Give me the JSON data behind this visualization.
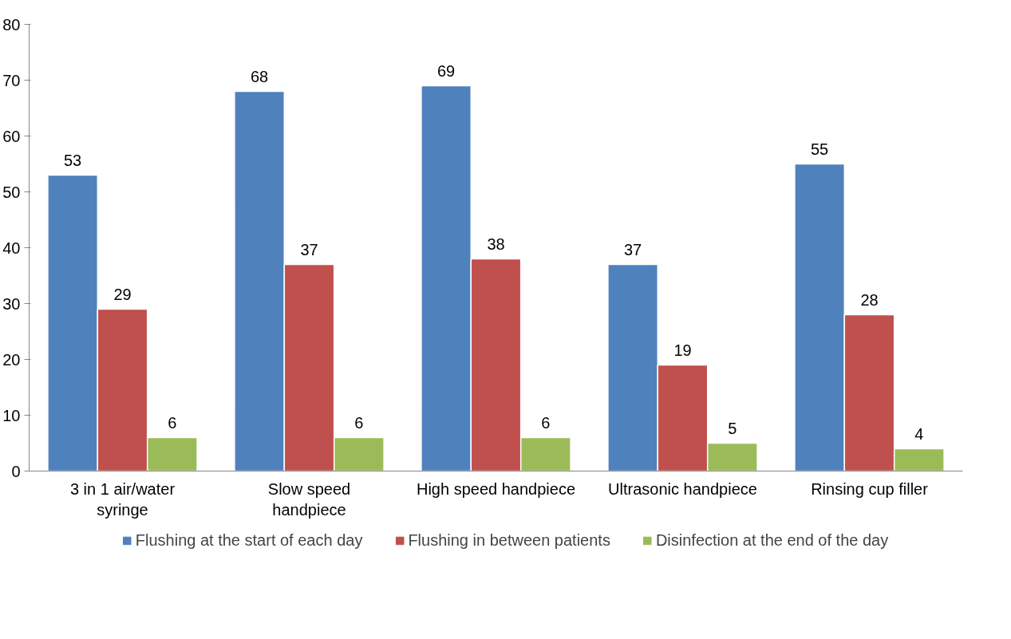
{
  "chart_data": {
    "type": "bar",
    "categories": [
      "3 in 1 air/water\nsyringe",
      "Slow speed\nhandpiece",
      "High speed handpiece",
      "Ultrasonic handpiece",
      "Rinsing cup filler"
    ],
    "series": [
      {
        "name": "Flushing at the start of each day",
        "color": "#4f81bd",
        "values": [
          53,
          68,
          69,
          37,
          55
        ]
      },
      {
        "name": "Flushing in between patients",
        "color": "#c0504d",
        "values": [
          29,
          37,
          38,
          19,
          28
        ]
      },
      {
        "name": "Disinfection at the end of the day",
        "color": "#9bbb59",
        "values": [
          6,
          6,
          6,
          5,
          4
        ]
      }
    ],
    "ylim": [
      0,
      80
    ],
    "yticks": [
      0,
      10,
      20,
      30,
      40,
      50,
      60,
      70,
      80
    ],
    "data_labels": true,
    "grid": false,
    "legend": "bottom"
  }
}
